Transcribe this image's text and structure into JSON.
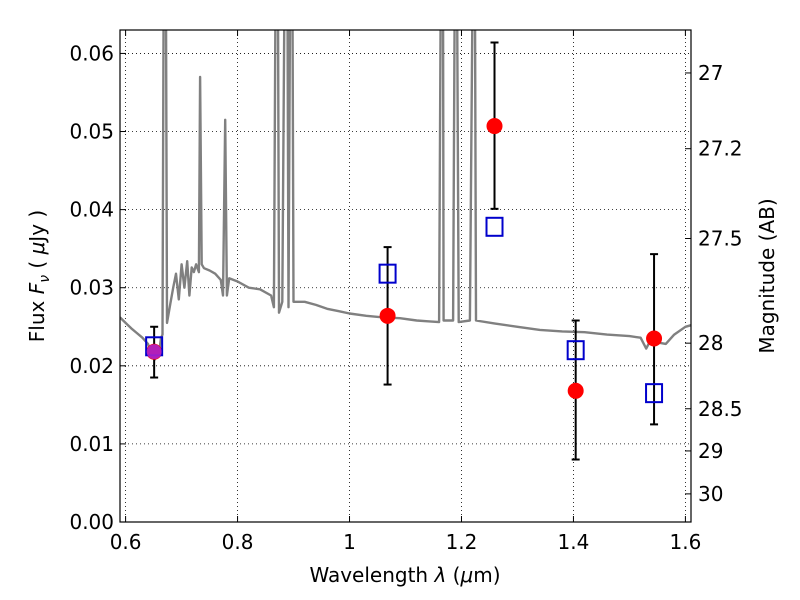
{
  "chart_data": {
    "type": "scatter",
    "xlabel_text": "Wavelength",
    "xlabel_symbol": "λ",
    "xlabel_unit_open": " (",
    "xlabel_unit_mu": "μ",
    "xlabel_unit_close": "m)",
    "ylabel_text": "Flux",
    "ylabel_symbol_F": "F",
    "ylabel_symbol_sub": "ν",
    "ylabel_open": "(",
    "ylabel_mu": "μ",
    "ylabel_close": "Jy )",
    "y2label": "Magnitude (AB)",
    "xlim": [
      0.59,
      1.61
    ],
    "ylim": [
      0.0,
      0.063
    ],
    "x_ticks": [
      0.6,
      0.8,
      1.0,
      1.2,
      1.4,
      1.6
    ],
    "x_tick_labels": [
      "0.6",
      "0.8",
      "1",
      "1.2",
      "1.4",
      "1.6"
    ],
    "y_ticks": [
      0.0,
      0.01,
      0.02,
      0.03,
      0.04,
      0.05,
      0.06
    ],
    "y_tick_labels": [
      "0.00",
      "0.01",
      "0.02",
      "0.03",
      "0.04",
      "0.05",
      "0.06"
    ],
    "y2_ticks": [
      {
        "label": "27",
        "flux": 0.0575
      },
      {
        "label": "27.2",
        "flux": 0.0478
      },
      {
        "label": "27.5",
        "flux": 0.0363
      },
      {
        "label": "28",
        "flux": 0.0229
      },
      {
        "label": "28.5",
        "flux": 0.0145
      },
      {
        "label": "29",
        "flux": 0.0091
      },
      {
        "label": "30",
        "flux": 0.0036
      }
    ],
    "grid": true,
    "grid_style": "dotted",
    "colors": {
      "model": "#808080",
      "observed": "#ff0000",
      "model_photometry": "#0000cc",
      "errorbar": "#000000",
      "overlap": "#aa22cc"
    },
    "series": [
      {
        "kind": "observed-points",
        "color": "#ff0000",
        "points": [
          {
            "x": 0.651,
            "y": 0.0218,
            "yerr_low": 0.0185,
            "yerr_high": 0.025
          },
          {
            "x": 1.068,
            "y": 0.0264,
            "yerr_low": 0.0176,
            "yerr_high": 0.0352
          },
          {
            "x": 1.259,
            "y": 0.0507,
            "yerr_low": 0.0401,
            "yerr_high": 0.0614
          },
          {
            "x": 1.404,
            "y": 0.0168,
            "yerr_low": 0.008,
            "yerr_high": 0.0258
          },
          {
            "x": 1.544,
            "y": 0.0235,
            "yerr_low": 0.0125,
            "yerr_high": 0.0343
          }
        ]
      },
      {
        "kind": "model-photometry",
        "color": "#0000cc",
        "points": [
          {
            "x": 0.651,
            "y": 0.0225
          },
          {
            "x": 1.068,
            "y": 0.0318
          },
          {
            "x": 1.259,
            "y": 0.0378
          },
          {
            "x": 1.404,
            "y": 0.022
          },
          {
            "x": 1.544,
            "y": 0.0165
          }
        ]
      },
      {
        "kind": "model-spectrum",
        "color": "#808080",
        "points": [
          [
            0.59,
            0.0262
          ],
          [
            0.6,
            0.0255
          ],
          [
            0.61,
            0.0248
          ],
          [
            0.62,
            0.0242
          ],
          [
            0.63,
            0.0236
          ],
          [
            0.64,
            0.0228
          ],
          [
            0.645,
            0.0218
          ],
          [
            0.652,
            0.0208
          ],
          [
            0.66,
            0.0218
          ],
          [
            0.663,
            0.0235
          ],
          [
            0.666,
            0.024
          ],
          [
            0.668,
            0.07
          ],
          [
            0.672,
            0.07
          ],
          [
            0.674,
            0.0255
          ],
          [
            0.68,
            0.028
          ],
          [
            0.685,
            0.03
          ],
          [
            0.69,
            0.0318
          ],
          [
            0.695,
            0.0285
          ],
          [
            0.7,
            0.033
          ],
          [
            0.705,
            0.03
          ],
          [
            0.71,
            0.0334
          ],
          [
            0.714,
            0.029
          ],
          [
            0.718,
            0.0326
          ],
          [
            0.722,
            0.032
          ],
          [
            0.726,
            0.033
          ],
          [
            0.731,
            0.032
          ],
          [
            0.733,
            0.057
          ],
          [
            0.736,
            0.033
          ],
          [
            0.74,
            0.0325
          ],
          [
            0.75,
            0.0322
          ],
          [
            0.76,
            0.0318
          ],
          [
            0.77,
            0.031
          ],
          [
            0.774,
            0.029
          ],
          [
            0.778,
            0.0515
          ],
          [
            0.781,
            0.029
          ],
          [
            0.785,
            0.0312
          ],
          [
            0.8,
            0.0308
          ],
          [
            0.82,
            0.03
          ],
          [
            0.84,
            0.0298
          ],
          [
            0.86,
            0.029
          ],
          [
            0.865,
            0.0275
          ],
          [
            0.868,
            0.07
          ],
          [
            0.872,
            0.07
          ],
          [
            0.874,
            0.0268
          ],
          [
            0.88,
            0.0282
          ],
          [
            0.884,
            0.07
          ],
          [
            0.889,
            0.07
          ],
          [
            0.891,
            0.0275
          ],
          [
            0.894,
            0.07
          ],
          [
            0.898,
            0.07
          ],
          [
            0.9,
            0.0282
          ],
          [
            0.92,
            0.0282
          ],
          [
            0.94,
            0.0278
          ],
          [
            0.96,
            0.0273
          ],
          [
            0.98,
            0.027
          ],
          [
            1.0,
            0.0267
          ],
          [
            1.03,
            0.0264
          ],
          [
            1.06,
            0.0262
          ],
          [
            1.09,
            0.0261
          ],
          [
            1.12,
            0.0258
          ],
          [
            1.14,
            0.0257
          ],
          [
            1.16,
            0.0256
          ],
          [
            1.163,
            0.07
          ],
          [
            1.167,
            0.07
          ],
          [
            1.168,
            0.0258
          ],
          [
            1.185,
            0.0258
          ],
          [
            1.188,
            0.07
          ],
          [
            1.192,
            0.07
          ],
          [
            1.195,
            0.0256
          ],
          [
            1.215,
            0.0258
          ],
          [
            1.22,
            0.07
          ],
          [
            1.224,
            0.07
          ],
          [
            1.226,
            0.0258
          ],
          [
            1.26,
            0.0254
          ],
          [
            1.3,
            0.025
          ],
          [
            1.34,
            0.0246
          ],
          [
            1.38,
            0.0244
          ],
          [
            1.42,
            0.0243
          ],
          [
            1.46,
            0.024
          ],
          [
            1.5,
            0.0238
          ],
          [
            1.52,
            0.0236
          ],
          [
            1.53,
            0.0222
          ],
          [
            1.54,
            0.0236
          ],
          [
            1.55,
            0.023
          ],
          [
            1.565,
            0.0228
          ],
          [
            1.58,
            0.024
          ],
          [
            1.6,
            0.025
          ],
          [
            1.61,
            0.0252
          ]
        ]
      }
    ]
  }
}
